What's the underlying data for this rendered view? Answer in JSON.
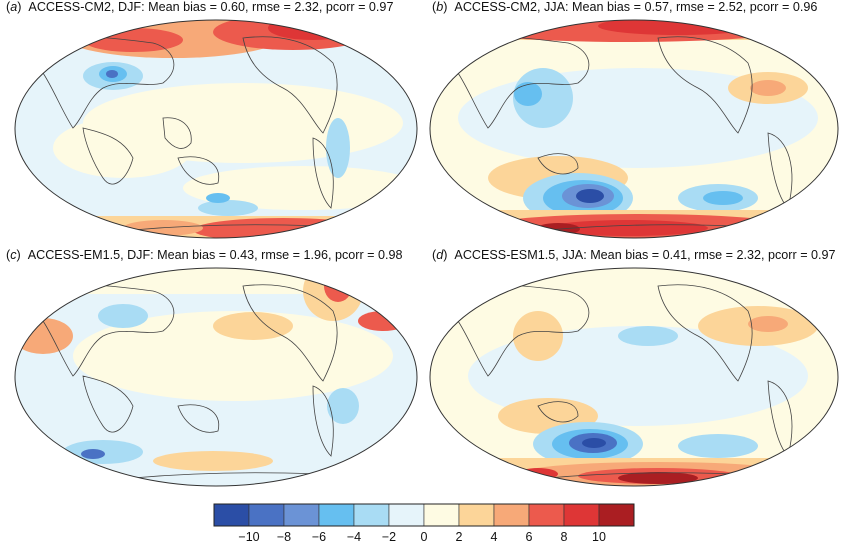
{
  "panels": [
    {
      "letter": "a",
      "model": "ACCESS-CM2",
      "season": "DJF",
      "title_rest": "ACCESS-CM2, DJF: Mean bias = 0.60, rmse = 2.32, pcorr = 0.97",
      "mean_bias": 0.6,
      "rmse": 2.32,
      "pcorr": 0.97
    },
    {
      "letter": "b",
      "model": "ACCESS-CM2",
      "season": "JJA",
      "title_rest": "ACCESS-CM2, JJA: Mean bias = 0.57, rmse = 2.52, pcorr = 0.96",
      "mean_bias": 0.57,
      "rmse": 2.52,
      "pcorr": 0.96
    },
    {
      "letter": "c",
      "model": "ACCESS-EM1.5",
      "season": "DJF",
      "title_rest": "ACCESS-EM1.5, DJF: Mean bias = 0.43, rmse = 1.96, pcorr = 0.98",
      "mean_bias": 0.43,
      "rmse": 1.96,
      "pcorr": 0.98
    },
    {
      "letter": "d",
      "model": "ACCESS-ESM1.5",
      "season": "JJA",
      "title_rest": "ACCESS-ESM1.5, JJA: Mean bias = 0.41, rmse = 2.32, pcorr = 0.97",
      "mean_bias": 0.41,
      "rmse": 2.32,
      "pcorr": 0.97
    }
  ],
  "colorbar": {
    "ticks": [
      "−10",
      "−8",
      "−6",
      "−4",
      "−2",
      "0",
      "2",
      "4",
      "6",
      "8",
      "10"
    ],
    "colors": [
      "#2b4ea6",
      "#4a72c4",
      "#6b93d6",
      "#66bff0",
      "#a9dcf4",
      "#e6f4fa",
      "#fefbe3",
      "#fcd599",
      "#f7a978",
      "#ec5a4d",
      "#de3636",
      "#aa1e22"
    ]
  }
}
